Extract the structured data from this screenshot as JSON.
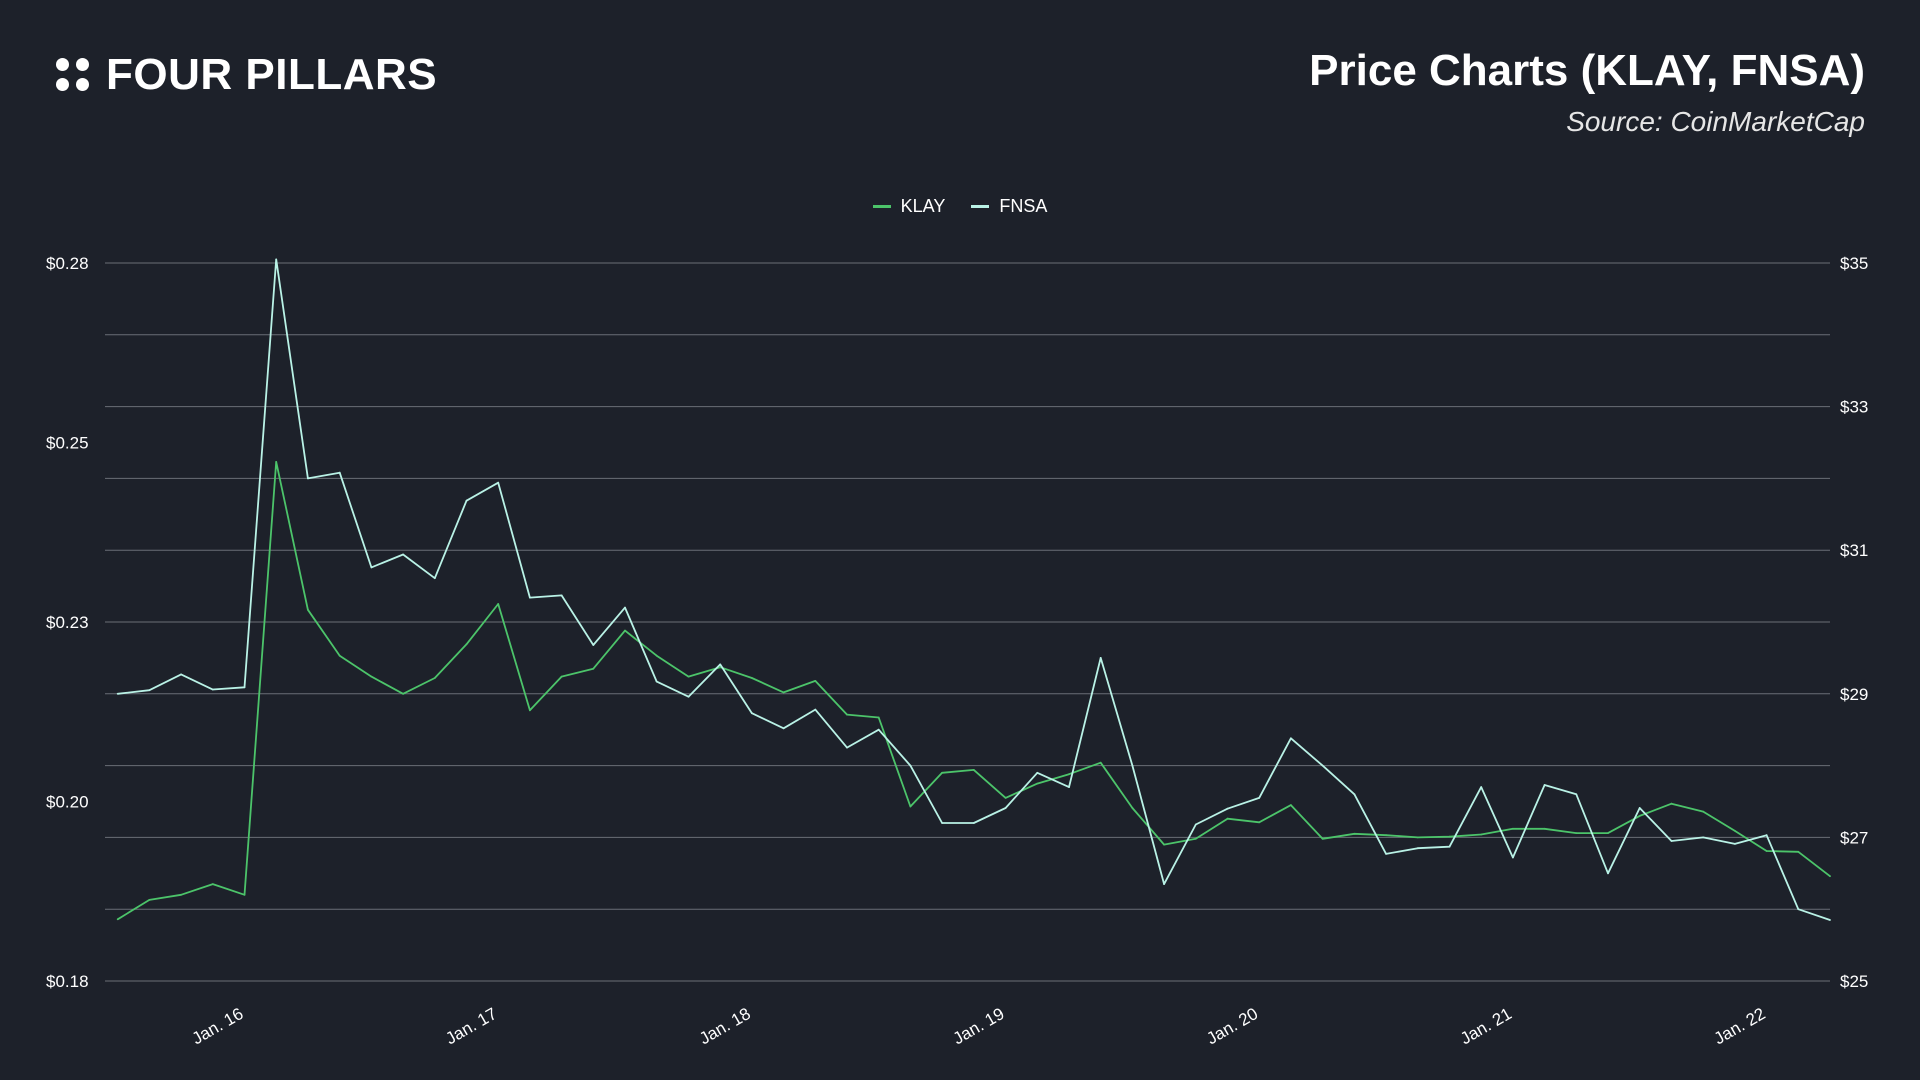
{
  "brand": {
    "name": "FOUR PILLARS"
  },
  "header": {
    "title": "Price Charts (KLAY, FNSA)",
    "subtitle": "Source: CoinMarketCap"
  },
  "colors": {
    "background": "#1d212a",
    "klay": "#4cc46a",
    "fnsa": "#b9f2e6",
    "grid": "#6a6e76"
  },
  "chart_data": {
    "type": "line",
    "legend_position": "top-center",
    "grid": true,
    "x_ticks": [
      "Jan. 16",
      "Jan. 17",
      "Jan. 18",
      "Jan. 19",
      "Jan. 20",
      "Jan. 21",
      "Jan. 22"
    ],
    "x_tick_positions": [
      1,
      2,
      3,
      4,
      5,
      6,
      7
    ],
    "x_range": [
      0.45,
      7.25
    ],
    "left_axis": {
      "ticks": [
        "$0.28",
        "$0.25",
        "$0.23",
        "$0.20",
        "$0.18"
      ],
      "range": [
        0.18,
        0.28
      ],
      "gridlines": 11
    },
    "right_axis": {
      "ticks": [
        "$35",
        "$33",
        "$31",
        "$29",
        "$27",
        "$25"
      ],
      "range": [
        25,
        35
      ]
    },
    "series": [
      {
        "name": "KLAY",
        "axis": "left",
        "color": "#4cc46a",
        "x": [
          0.5,
          0.625,
          0.75,
          0.875,
          1.0,
          1.125,
          1.25,
          1.375,
          1.5,
          1.625,
          1.75,
          1.875,
          2.0,
          2.125,
          2.25,
          2.375,
          2.5,
          2.625,
          2.75,
          2.875,
          3.0,
          3.125,
          3.25,
          3.375,
          3.5,
          3.625,
          3.75,
          3.875,
          4.0,
          4.125,
          4.25,
          4.375,
          4.5,
          4.625,
          4.75,
          4.875,
          5.0,
          5.125,
          5.25,
          5.375,
          5.5,
          5.625,
          5.75,
          5.875,
          6.0,
          6.125,
          6.25,
          6.375,
          6.5,
          6.625,
          6.75,
          6.875,
          7.0,
          7.125,
          7.25
        ],
        "values": [
          0.1886,
          0.1913,
          0.192,
          0.1935,
          0.192,
          0.2523,
          0.2317,
          0.2253,
          0.2224,
          0.22,
          0.2222,
          0.2269,
          0.2325,
          0.2177,
          0.2224,
          0.2235,
          0.2288,
          0.2253,
          0.2224,
          0.2237,
          0.2222,
          0.2202,
          0.2218,
          0.2171,
          0.2167,
          0.2043,
          0.209,
          0.2094,
          0.2055,
          0.2075,
          0.2088,
          0.2104,
          0.2041,
          0.199,
          0.1998,
          0.2026,
          0.2021,
          0.2045,
          0.1998,
          0.2005,
          0.2003,
          0.2,
          0.2001,
          0.2004,
          0.2012,
          0.2012,
          0.2006,
          0.2006,
          0.203,
          0.2047,
          0.2036,
          0.2009,
          0.1981,
          0.198,
          0.1946
        ]
      },
      {
        "name": "FNSA",
        "axis": "right",
        "color": "#b9f2e6",
        "x": [
          0.5,
          0.625,
          0.75,
          0.875,
          1.0,
          1.125,
          1.25,
          1.375,
          1.5,
          1.625,
          1.75,
          1.875,
          2.0,
          2.125,
          2.25,
          2.375,
          2.5,
          2.625,
          2.75,
          2.875,
          3.0,
          3.125,
          3.25,
          3.375,
          3.5,
          3.625,
          3.75,
          3.875,
          4.0,
          4.125,
          4.25,
          4.375,
          4.5,
          4.625,
          4.75,
          4.875,
          5.0,
          5.125,
          5.25,
          5.375,
          5.5,
          5.625,
          5.75,
          5.875,
          6.0,
          6.125,
          6.25,
          6.375,
          6.5,
          6.625,
          6.75,
          6.875,
          7.0,
          7.125,
          7.25
        ],
        "values": [
          29.0,
          29.05,
          29.27,
          29.06,
          29.09,
          35.05,
          32.0,
          32.08,
          30.76,
          30.94,
          30.61,
          31.69,
          31.94,
          30.34,
          30.37,
          29.68,
          30.2,
          29.17,
          28.96,
          29.41,
          28.73,
          28.52,
          28.78,
          28.25,
          28.5,
          28.0,
          27.2,
          27.2,
          27.41,
          27.9,
          27.7,
          29.5,
          28.0,
          26.35,
          27.18,
          27.4,
          27.55,
          28.38,
          28.0,
          27.6,
          26.77,
          26.85,
          26.87,
          27.7,
          26.72,
          27.73,
          27.6,
          26.5,
          27.41,
          26.95,
          27.0,
          26.91,
          27.03,
          26.0,
          25.85
        ]
      }
    ]
  }
}
